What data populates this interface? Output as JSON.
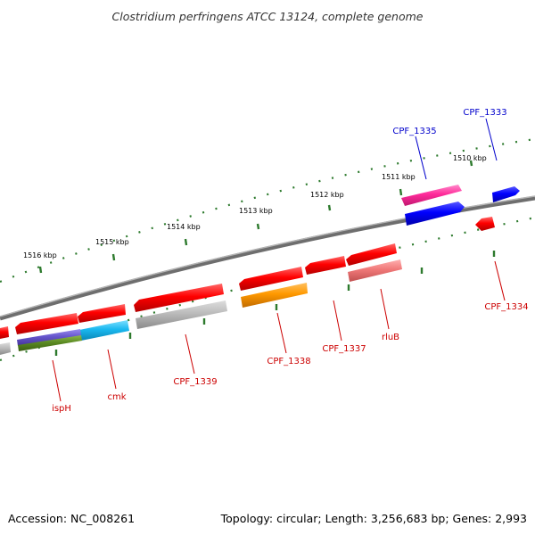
{
  "title": "Clostridium perfringens ATCC 13124, complete genome",
  "footer": {
    "accession": "Accession: NC_008261",
    "summary": "Topology: circular; Length: 3,256,683 bp; Genes: 2,993"
  },
  "colors": {
    "backbone": "#888888",
    "tick_dot": "#2d7a2d",
    "label_forward": "#0000cc",
    "label_reverse": "#cc0000"
  },
  "kbp_ticks": [
    "1510 kbp",
    "1511 kbp",
    "1512 kbp",
    "1513 kbp",
    "1514 kbp",
    "1515 kbp",
    "1516 kbp"
  ],
  "gene_labels": [
    {
      "text": "CPF_1333",
      "strand": "forward"
    },
    {
      "text": "CPF_1335",
      "strand": "forward"
    },
    {
      "text": "CPF_1334",
      "strand": "reverse"
    },
    {
      "text": "rluB",
      "strand": "reverse"
    },
    {
      "text": "CPF_1337",
      "strand": "reverse"
    },
    {
      "text": "CPF_1338",
      "strand": "reverse"
    },
    {
      "text": "CPF_1339",
      "strand": "reverse"
    },
    {
      "text": "cmk",
      "strand": "reverse"
    },
    {
      "text": "ispH",
      "strand": "reverse"
    }
  ]
}
